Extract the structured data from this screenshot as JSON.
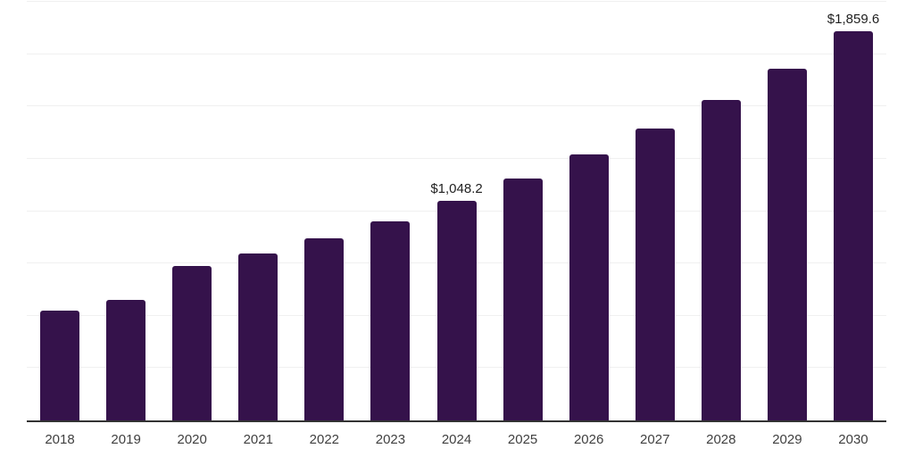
{
  "chart_data": {
    "type": "bar",
    "categories": [
      "2018",
      "2019",
      "2020",
      "2021",
      "2022",
      "2023",
      "2024",
      "2025",
      "2026",
      "2027",
      "2028",
      "2029",
      "2030"
    ],
    "values": [
      525,
      574,
      739,
      797,
      869,
      953,
      1048.2,
      1155,
      1270,
      1395,
      1530,
      1682,
      1859.6
    ],
    "point_labels": [
      "",
      "",
      "",
      "",
      "",
      "",
      "$1,048.2",
      "",
      "",
      "",
      "",
      "",
      "$1,859.6"
    ],
    "title": "",
    "xlabel": "",
    "ylabel": "",
    "ylim": [
      0,
      2000
    ],
    "gridline_interval": 250,
    "grid": true,
    "legend_position": "none",
    "colors": {
      "bar": "#35124b",
      "gridline": "#f0f0f0",
      "axis_line": "#333333",
      "tick_label": "#404040",
      "data_label": "#1f1f1f",
      "background": "#ffffff"
    }
  }
}
